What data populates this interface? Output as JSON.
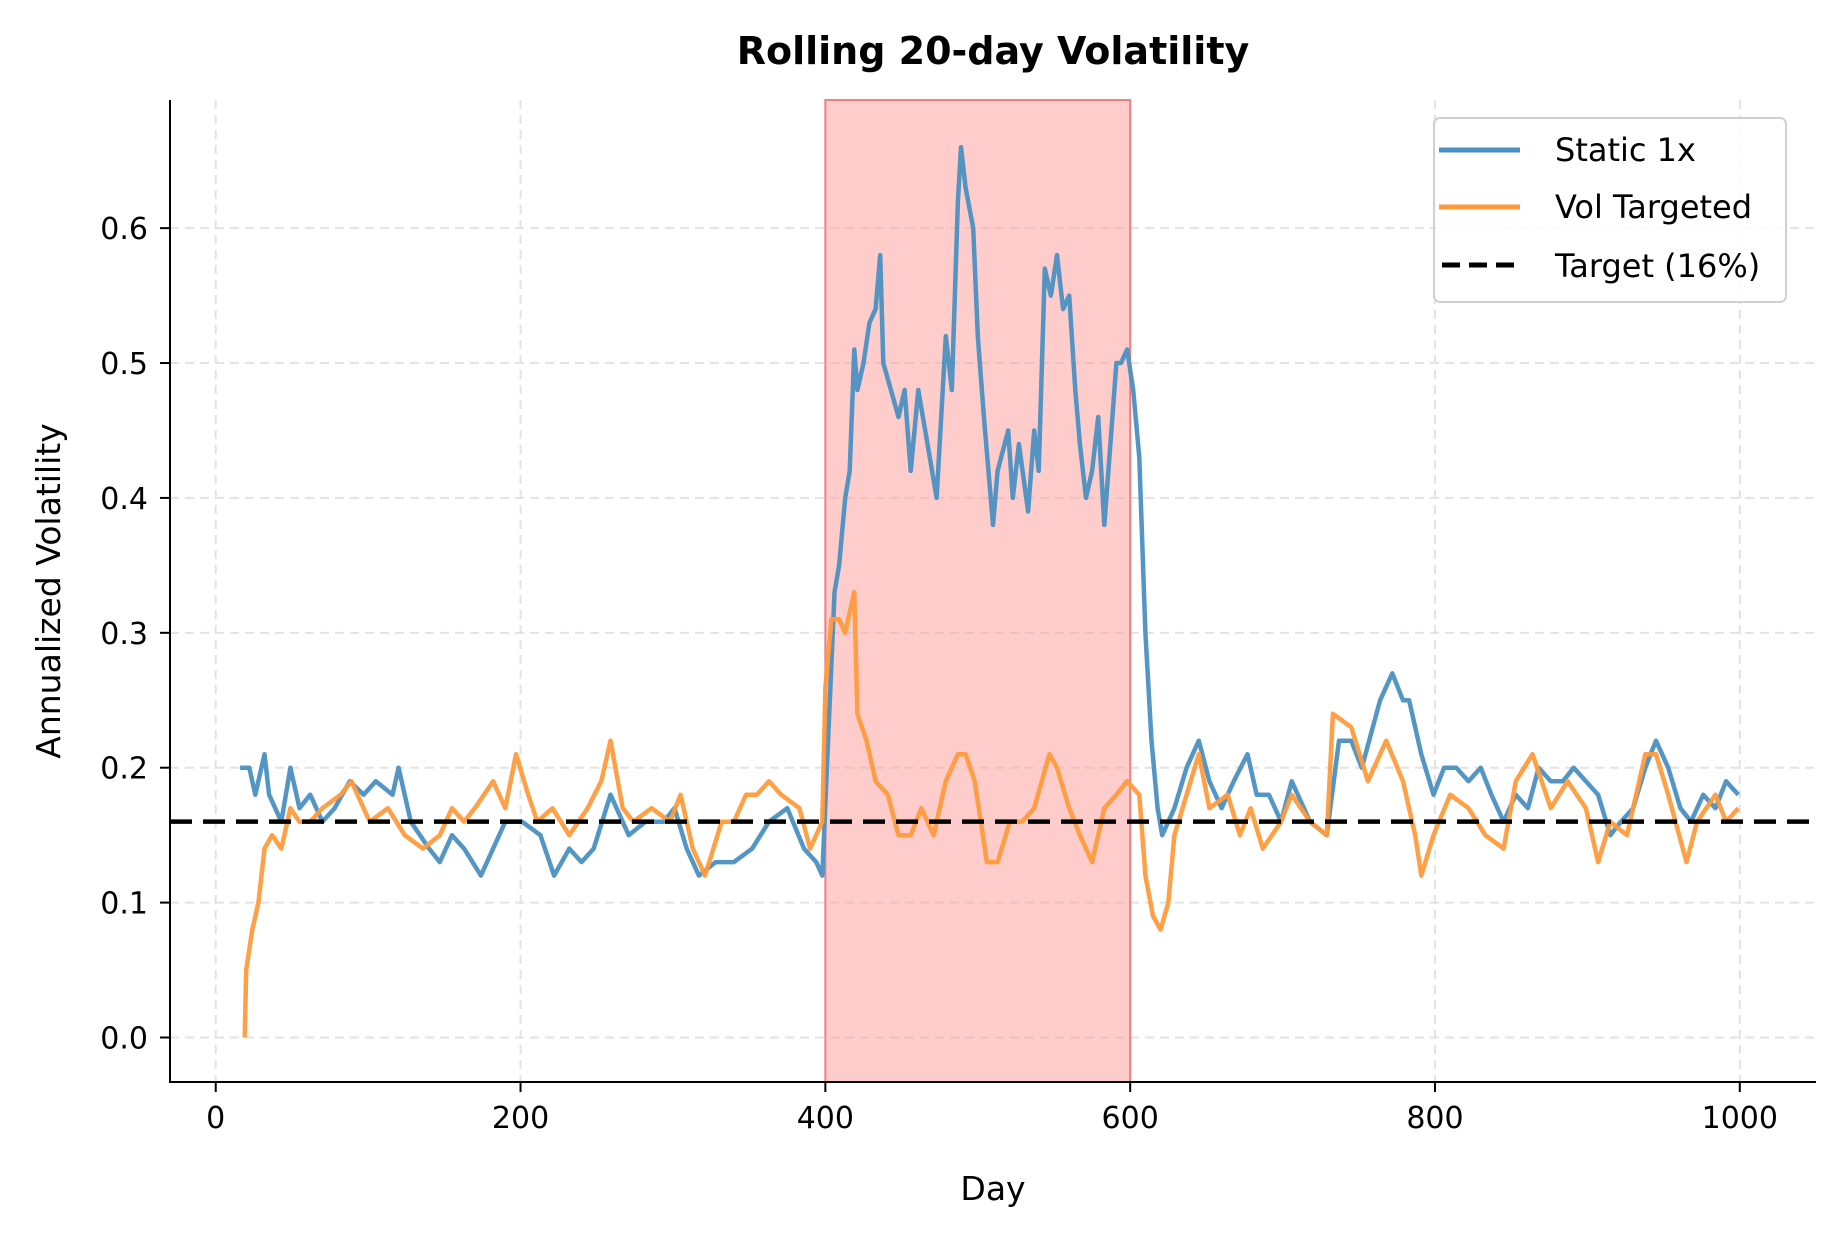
{
  "chart_data": {
    "type": "line",
    "title": "Rolling 20-day Volatility",
    "xlabel": "Day",
    "ylabel": "Annualized Volatility",
    "xlim": [
      -30,
      1050
    ],
    "ylim": [
      -0.033,
      0.695
    ],
    "xticks": [
      "0",
      "200",
      "400",
      "600",
      "800",
      "1000"
    ],
    "yticks": [
      "0.0",
      "0.1",
      "0.2",
      "0.3",
      "0.4",
      "0.5",
      "0.6"
    ],
    "grid": true,
    "legend_position": "top-right",
    "shaded_region": {
      "x": [
        400,
        600
      ],
      "color": "#ff9999"
    },
    "reference_line": {
      "name": "Target (16%)",
      "y": 0.16,
      "color": "#000000",
      "style": "dashed"
    },
    "series": [
      {
        "name": "Static 1x",
        "color": "#4a90c2",
        "x": [
          16,
          22,
          26,
          32,
          35,
          43,
          49,
          55,
          62,
          70,
          78,
          88,
          97,
          105,
          116,
          120,
          128,
          140,
          147,
          155,
          163,
          174,
          182,
          190,
          201,
          213,
          222,
          232,
          240,
          248,
          259,
          271,
          282,
          294,
          301,
          309,
          317,
          328,
          340,
          352,
          363,
          375,
          386,
          394,
          398,
          401,
          406,
          409,
          413,
          416,
          419,
          421,
          425,
          429,
          433,
          436,
          438,
          443,
          448,
          452,
          456,
          461,
          467,
          473,
          479,
          483,
          487,
          489,
          492,
          497,
          500,
          504,
          510,
          513,
          520,
          523,
          527,
          533,
          537,
          540,
          544,
          548,
          552,
          556,
          560,
          564,
          567,
          571,
          575,
          579,
          583,
          587,
          591,
          594,
          598,
          602,
          606,
          610,
          614,
          618,
          621,
          629,
          637,
          645,
          652,
          660,
          668,
          677,
          683,
          691,
          699,
          706,
          718,
          729,
          737,
          745,
          752,
          764,
          772,
          779,
          783,
          791,
          799,
          806,
          814,
          822,
          830,
          837,
          845,
          853,
          861,
          868,
          876,
          884,
          891,
          899,
          907,
          915,
          922,
          930,
          938,
          945,
          953,
          961,
          968,
          976,
          984,
          991,
          999
        ],
        "y": [
          0.2,
          0.2,
          0.18,
          0.21,
          0.18,
          0.16,
          0.2,
          0.17,
          0.18,
          0.16,
          0.17,
          0.19,
          0.18,
          0.19,
          0.18,
          0.2,
          0.16,
          0.14,
          0.13,
          0.15,
          0.14,
          0.12,
          0.14,
          0.16,
          0.16,
          0.15,
          0.12,
          0.14,
          0.13,
          0.14,
          0.18,
          0.15,
          0.16,
          0.16,
          0.17,
          0.14,
          0.12,
          0.13,
          0.13,
          0.14,
          0.16,
          0.17,
          0.14,
          0.13,
          0.12,
          0.2,
          0.33,
          0.35,
          0.4,
          0.42,
          0.51,
          0.48,
          0.5,
          0.53,
          0.54,
          0.58,
          0.5,
          0.48,
          0.46,
          0.48,
          0.42,
          0.48,
          0.44,
          0.4,
          0.52,
          0.48,
          0.62,
          0.66,
          0.63,
          0.6,
          0.52,
          0.46,
          0.38,
          0.42,
          0.45,
          0.4,
          0.44,
          0.39,
          0.45,
          0.42,
          0.57,
          0.55,
          0.58,
          0.54,
          0.55,
          0.48,
          0.44,
          0.4,
          0.42,
          0.46,
          0.38,
          0.44,
          0.5,
          0.5,
          0.51,
          0.48,
          0.43,
          0.3,
          0.22,
          0.17,
          0.15,
          0.17,
          0.2,
          0.22,
          0.19,
          0.17,
          0.19,
          0.21,
          0.18,
          0.18,
          0.16,
          0.19,
          0.16,
          0.15,
          0.22,
          0.22,
          0.2,
          0.25,
          0.27,
          0.25,
          0.25,
          0.21,
          0.18,
          0.2,
          0.2,
          0.19,
          0.2,
          0.18,
          0.16,
          0.18,
          0.17,
          0.2,
          0.19,
          0.19,
          0.2,
          0.19,
          0.18,
          0.15,
          0.16,
          0.17,
          0.2,
          0.22,
          0.2,
          0.17,
          0.16,
          0.18,
          0.17,
          0.19,
          0.18
        ]
      },
      {
        "name": "Vol Targeted",
        "color": "#ff9a3c",
        "x": [
          19,
          20,
          24,
          28,
          32,
          37,
          43,
          49,
          55,
          62,
          70,
          82,
          89,
          101,
          113,
          124,
          136,
          147,
          155,
          163,
          170,
          182,
          190,
          197,
          205,
          211,
          221,
          232,
          244,
          253,
          259,
          267,
          274,
          286,
          298,
          305,
          313,
          321,
          332,
          340,
          348,
          355,
          363,
          371,
          383,
          390,
          398,
          400,
          404,
          409,
          413,
          419,
          421,
          427,
          433,
          441,
          448,
          456,
          463,
          471,
          479,
          487,
          492,
          498,
          506,
          513,
          521,
          529,
          537,
          547,
          552,
          560,
          567,
          575,
          583,
          591,
          598,
          606,
          610,
          615,
          620,
          625,
          629,
          637,
          645,
          652,
          664,
          672,
          679,
          687,
          699,
          706,
          718,
          729,
          733,
          745,
          756,
          768,
          779,
          787,
          791,
          799,
          810,
          822,
          833,
          845,
          853,
          864,
          876,
          887,
          899,
          907,
          915,
          926,
          938,
          945,
          953,
          965,
          972,
          984,
          991,
          999
        ],
        "y": [
          0.0,
          0.05,
          0.08,
          0.1,
          0.14,
          0.15,
          0.14,
          0.17,
          0.16,
          0.16,
          0.17,
          0.18,
          0.19,
          0.16,
          0.17,
          0.15,
          0.14,
          0.15,
          0.17,
          0.16,
          0.17,
          0.19,
          0.17,
          0.21,
          0.18,
          0.16,
          0.17,
          0.15,
          0.17,
          0.19,
          0.22,
          0.17,
          0.16,
          0.17,
          0.16,
          0.18,
          0.14,
          0.12,
          0.16,
          0.16,
          0.18,
          0.18,
          0.19,
          0.18,
          0.17,
          0.14,
          0.16,
          0.26,
          0.31,
          0.31,
          0.3,
          0.33,
          0.24,
          0.22,
          0.19,
          0.18,
          0.15,
          0.15,
          0.17,
          0.15,
          0.19,
          0.21,
          0.21,
          0.19,
          0.13,
          0.13,
          0.16,
          0.16,
          0.17,
          0.21,
          0.2,
          0.17,
          0.15,
          0.13,
          0.17,
          0.18,
          0.19,
          0.18,
          0.12,
          0.09,
          0.08,
          0.1,
          0.15,
          0.18,
          0.21,
          0.17,
          0.18,
          0.15,
          0.17,
          0.14,
          0.16,
          0.18,
          0.16,
          0.15,
          0.24,
          0.23,
          0.19,
          0.22,
          0.19,
          0.15,
          0.12,
          0.15,
          0.18,
          0.17,
          0.15,
          0.14,
          0.19,
          0.21,
          0.17,
          0.19,
          0.17,
          0.13,
          0.16,
          0.15,
          0.21,
          0.21,
          0.18,
          0.13,
          0.16,
          0.18,
          0.16,
          0.17
        ]
      }
    ]
  }
}
